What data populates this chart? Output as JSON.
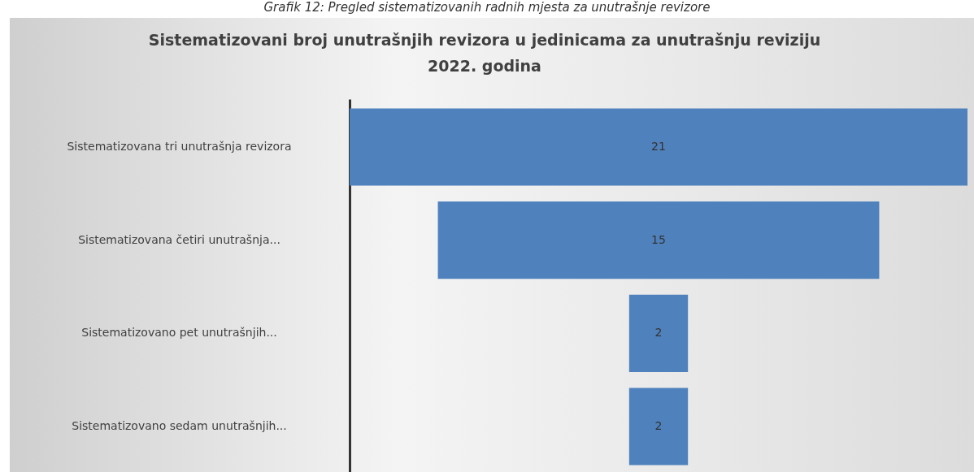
{
  "chart_data": {
    "type": "other",
    "title": [
      "Sistematizovani broj unutrašnjih revizora u jedinicama za unutrašnju reviziju",
      "2022. godina"
    ],
    "categories": [
      "Sistematizovana tri unutrašnja revizora",
      "Sistematizovana četiri unutrašnja...",
      "Sistematizovano pet unutrašnjih...",
      "Sistematizovano sedam unutrašnjih..."
    ],
    "values": [
      21,
      15,
      2,
      2
    ],
    "color": "#4f81bd",
    "data_labels": true,
    "annotations": [
      "Grafik 12: Pregled sistematizovanih radnih mjesta za unutrašnje revizore"
    ]
  }
}
